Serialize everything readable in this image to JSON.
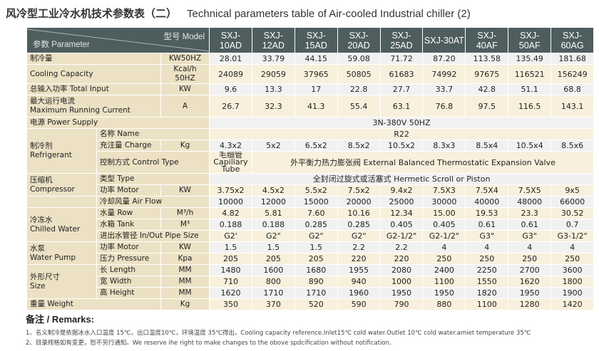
{
  "title": {
    "cn": "风冷型工业冷水机技术参数表（二）",
    "en": "Technical parameters table of Air-cooled Industrial chiller (2)"
  },
  "header": {
    "model_label": "型号 Model",
    "param_label": "参数 Parameter",
    "models": [
      "SXJ-10AD",
      "SXJ-12AD",
      "SXJ-15AD",
      "SXJ-20AD",
      "SXJ-25AD",
      "SXJ-30AT",
      "SXJ-40AF",
      "SXJ-50AF",
      "SXJ-60AG"
    ]
  },
  "rows": [
    {
      "group": "制冷量",
      "gcols": 2,
      "grows": 1,
      "unit": "KW50HZ",
      "values": [
        "28.01",
        "33.79",
        "44.15",
        "59.08",
        "71.72",
        "87.20",
        "113.58",
        "135.49",
        "181.68"
      ]
    },
    {
      "group": "Cooling Capacity",
      "gcols": 2,
      "grows": 1,
      "unit": "Kcal/h 50HZ",
      "values": [
        "24089",
        "29059",
        "37965",
        "50805",
        "61683",
        "74992",
        "97675",
        "116521",
        "156249"
      ]
    },
    {
      "group": "总输入功率 Total Input",
      "gcols": 2,
      "grows": 1,
      "unit": "KW",
      "values": [
        "9.6",
        "13.3",
        "17",
        "22.8",
        "27.7",
        "33.7",
        "42.8",
        "51.1",
        "68.8"
      ]
    },
    {
      "group": "最大运行电流\nMaximum Running Current",
      "gcols": 2,
      "grows": 1,
      "unit": "A",
      "tall": true,
      "values": [
        "26.7",
        "32.3",
        "41.3",
        "55.4",
        "63.1",
        "76.8",
        "97.5",
        "116.5",
        "143.1"
      ]
    },
    {
      "group": "电源 Power Supply",
      "gcols": 3,
      "grows": 1,
      "span": "3N-380V 50HZ"
    },
    {
      "group": "制冷剂\nRefrigerant",
      "gcols": 1,
      "grows": 3,
      "sub": "名称 Name",
      "scols": 2,
      "span": "R22"
    },
    {
      "sub": "充注量 Charge",
      "scols": 1,
      "unit": "Kg",
      "values": [
        "4.3x2",
        "5x2",
        "6.5x2",
        "8.5x2",
        "10.5x2",
        "8.3x3",
        "8.5x4",
        "10.5x4",
        "8.5x6"
      ]
    },
    {
      "sub": "控制方式 Control Type",
      "scols": 2,
      "tall": true,
      "values": [
        "毛细管\nCapillary Tube"
      ],
      "span": "外平衡力热力膨张阀 External Balanced Thermostatic Expansion Valve"
    },
    {
      "group": "压缩机\nCompressor",
      "gcols": 1,
      "grows": 2,
      "sub": "类型 Type",
      "scols": 2,
      "span": "全封闭过旋式或活塞式 Hermetic Scroll or Piston"
    },
    {
      "sub": "功率 Motor",
      "scols": 1,
      "unit": "KW",
      "values": [
        "3.75x2",
        "4.5x2",
        "5.5x2",
        "7.5x2",
        "9.4x2",
        "7.5X3",
        "7.5X4",
        "7.5X5",
        "9x5"
      ]
    },
    {
      "group": "",
      "gcols": 1,
      "grows": 1,
      "sub": "冷却风量 Air Flow",
      "scols": 2,
      "values": [
        "10000",
        "12000",
        "15000",
        "20000",
        "25000",
        "30000",
        "40000",
        "48000",
        "66000"
      ]
    },
    {
      "group": "冷冻水\nChilled Water",
      "gcols": 1,
      "grows": 3,
      "sub": "水量 Row",
      "scols": 1,
      "unit": "M³/h",
      "values": [
        "4.82",
        "5.81",
        "7.60",
        "10.16",
        "12.34",
        "15.00",
        "19.53",
        "23.3",
        "30.52"
      ]
    },
    {
      "sub": "水箱 Tank",
      "scols": 1,
      "unit": "M³",
      "values": [
        "0.188",
        "0.188",
        "0.285",
        "0.285",
        "0.405",
        "0.405",
        "0.61",
        "0.61",
        "0.7"
      ]
    },
    {
      "sub": "进出水管径 In/Out Pipe Size",
      "scols": 2,
      "values": [
        "G2'",
        "G2\"",
        "G2\"",
        "G2\"",
        "G2-1/2\"",
        "G2-1/2\"",
        "G3\"",
        "G3\"",
        "G3-1/2\""
      ]
    },
    {
      "group": "水泵\nWater Pump",
      "gcols": 1,
      "grows": 2,
      "sub": "功率 Motor",
      "scols": 1,
      "unit": "KW",
      "values": [
        "1.5",
        "1.5",
        "1.5",
        "2.2",
        "2.2",
        "4",
        "4",
        "4",
        "4"
      ]
    },
    {
      "sub": "压力 Pressure",
      "scols": 1,
      "unit": "Kpa",
      "values": [
        "205",
        "205",
        "205",
        "220",
        "220",
        "250",
        "250",
        "250",
        "250"
      ]
    },
    {
      "group": "外形尺寸\nSize",
      "gcols": 1,
      "grows": 3,
      "sub": "长 Length",
      "scols": 1,
      "unit": "MM",
      "values": [
        "1480",
        "1600",
        "1680",
        "1955",
        "2080",
        "2400",
        "2250",
        "2700",
        "3600"
      ]
    },
    {
      "sub": "宽 Width",
      "scols": 1,
      "unit": "MM",
      "values": [
        "710",
        "800",
        "890",
        "940",
        "1000",
        "1100",
        "1550",
        "1620",
        "1800"
      ]
    },
    {
      "sub": "高 Height",
      "scols": 1,
      "unit": "MM",
      "values": [
        "1620",
        "1710",
        "1710",
        "1960",
        "1950",
        "1950",
        "1820",
        "1950",
        "1900"
      ]
    },
    {
      "group": "重量 Weight",
      "gcols": 2,
      "grows": 1,
      "unit": "Kg",
      "values": [
        "350",
        "370",
        "520",
        "590",
        "790",
        "880",
        "1100",
        "1280",
        "1420"
      ]
    }
  ],
  "remarks": {
    "title": "备注 / Remarks:",
    "lines": [
      "1、名义制冷是依据冰水入口温度 15℃，出口温度10℃，环境温度 35℃得出。Cooling capacity reference.Inlet15℃ cold water.Outlet 10℃  cold water.amiet temperature 35℃",
      "2、目录规格如有变更，恕不另行通知。We reserve ihe right to make changes to the obove spdcification without notification."
    ]
  },
  "colors": {
    "header_bg": "#4e5d5d",
    "label_bg": "#ece1c4",
    "value_bg_a": "#f1f1f1",
    "value_bg_b": "#f8f0dc"
  }
}
